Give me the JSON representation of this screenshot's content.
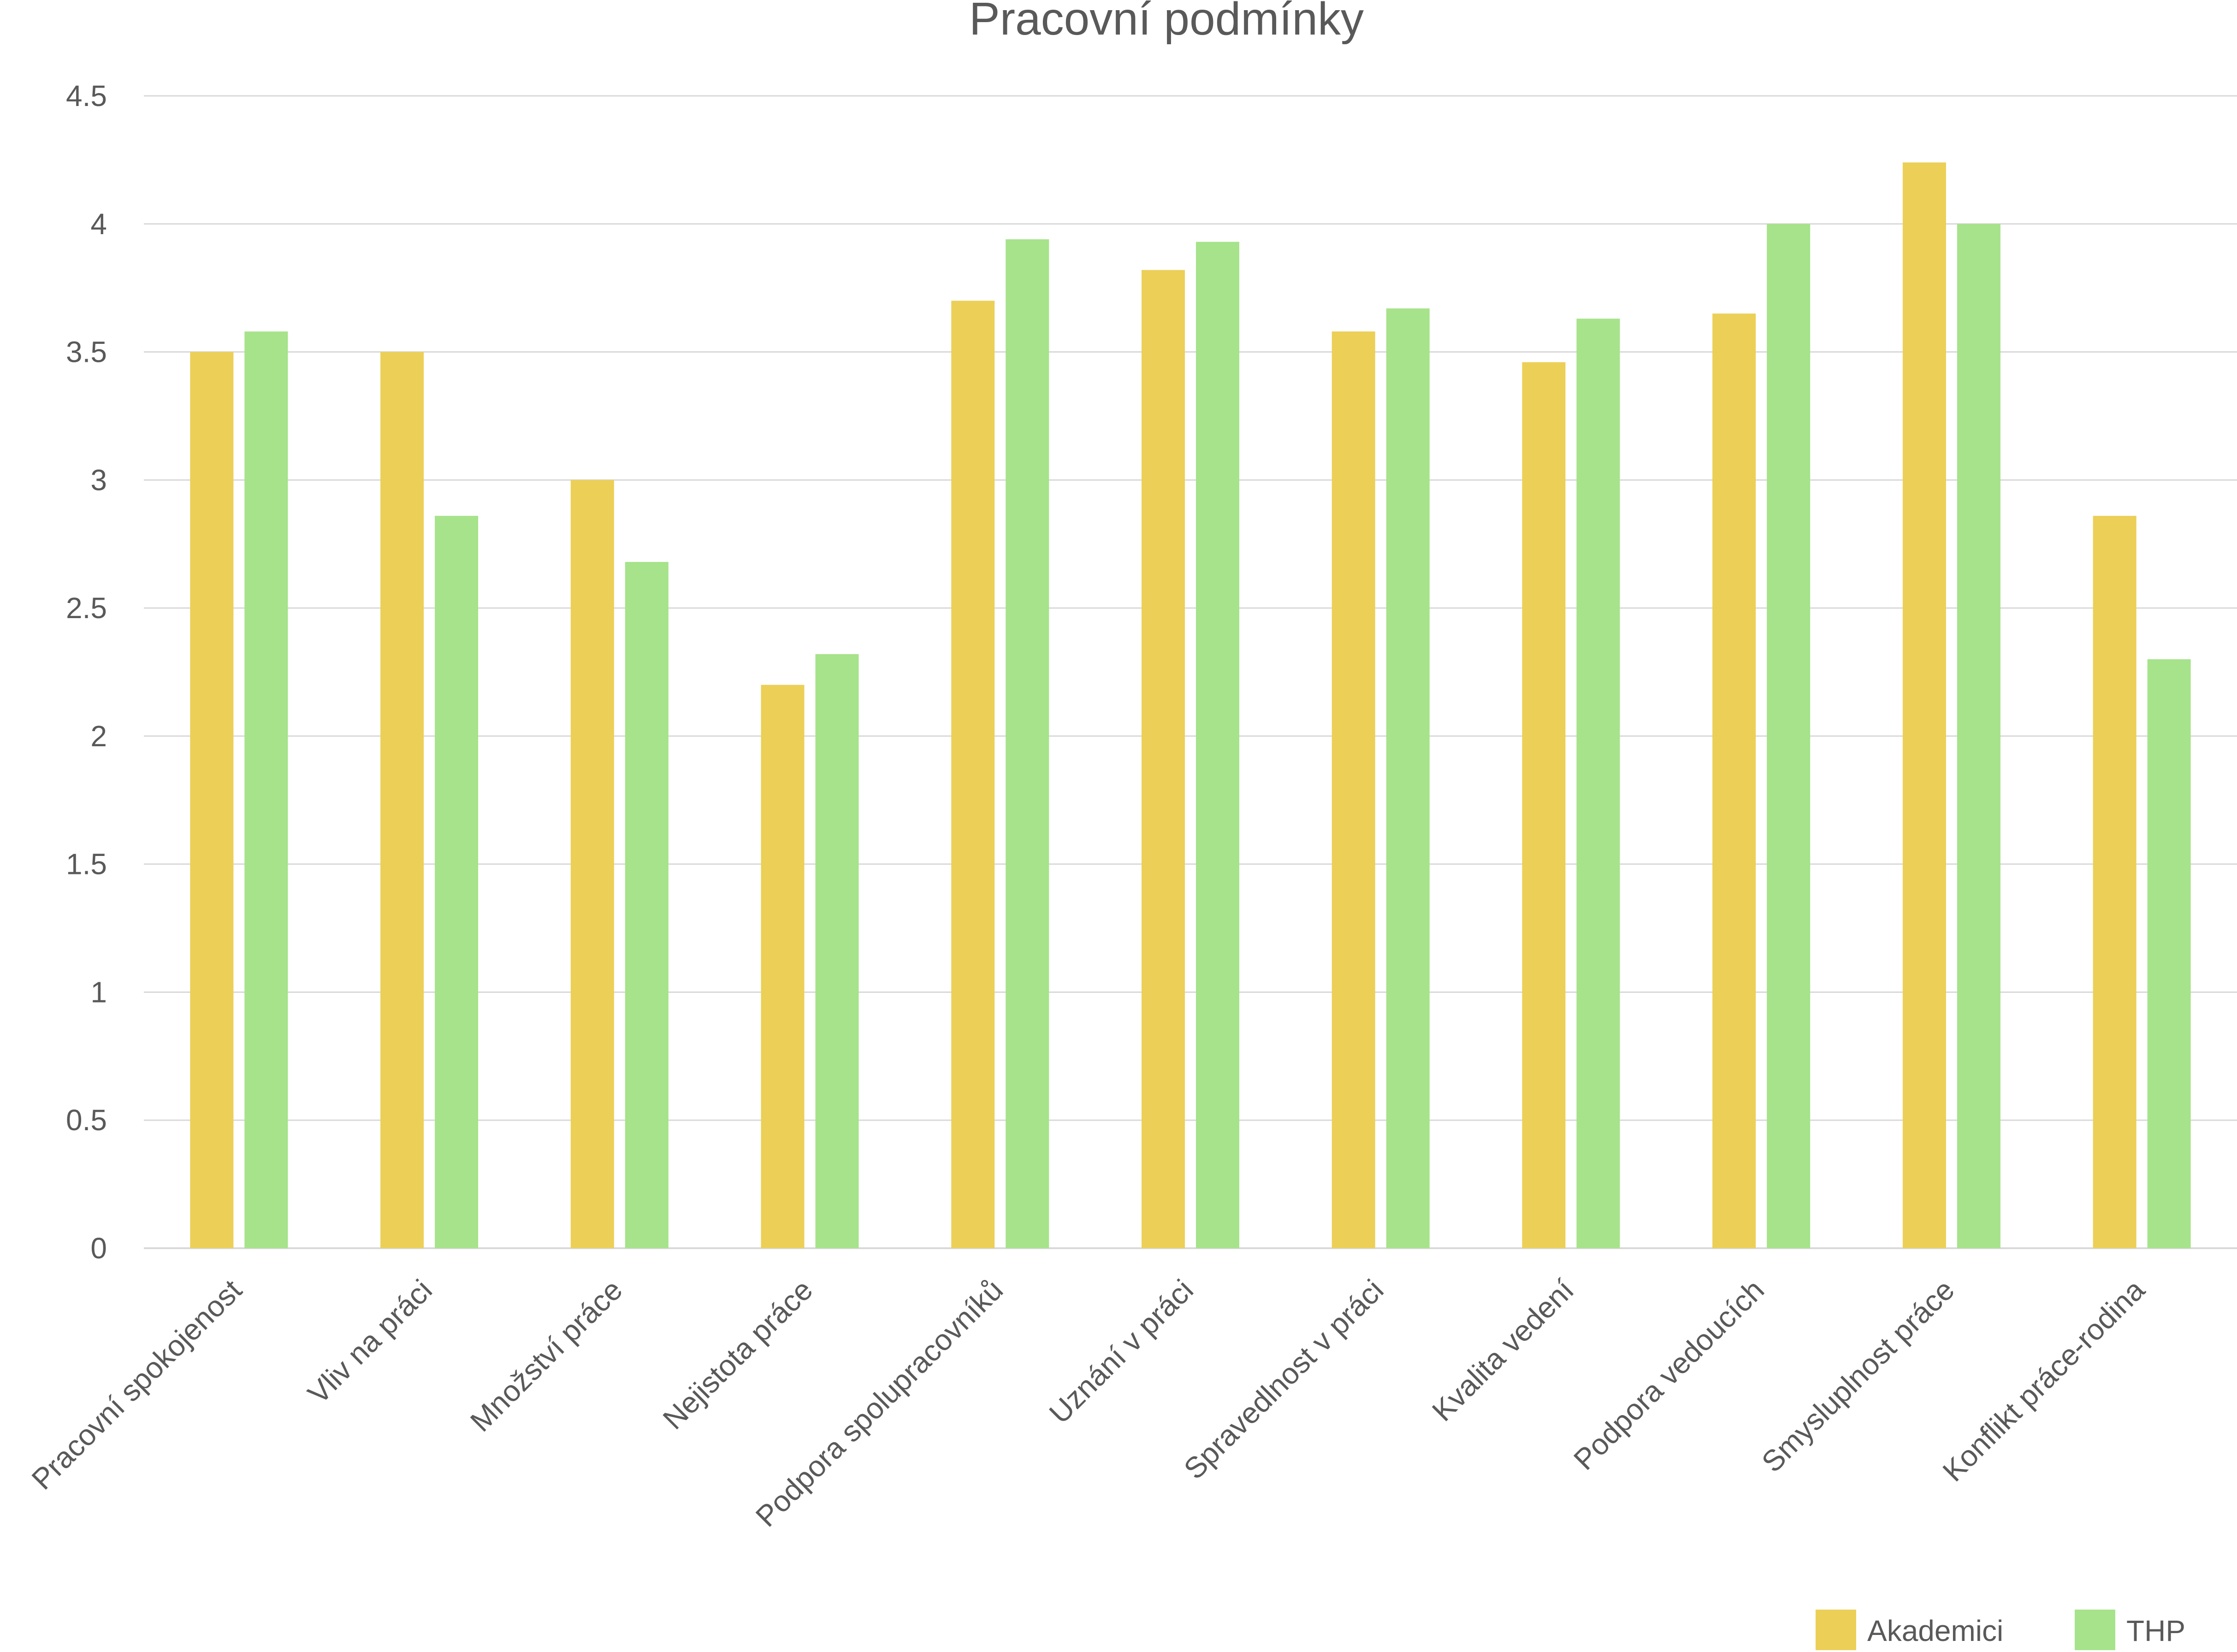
{
  "chart_data": {
    "type": "bar",
    "title": "Pracovní podmínky",
    "xlabel": "",
    "ylabel": "",
    "ylim": [
      0,
      4.5
    ],
    "yticks": [
      "0",
      "0.5",
      "1",
      "1.5",
      "2",
      "2.5",
      "3",
      "3.5",
      "4",
      "4.5"
    ],
    "grid": true,
    "legend_position": "bottom-right",
    "categories": [
      "Pracovní spokojenost",
      "Vliv na práci",
      "Množství práce",
      "Nejistota práce",
      "Podpora spolupracovníků",
      "Uznání v práci",
      "Spravedlnost v práci",
      "Kvalita vedení",
      "Podpora vedoucích",
      "Smysluplnost práce",
      "Konflikt práce-rodina"
    ],
    "series": [
      {
        "name": "Akademici",
        "color": "#eccf57",
        "values": [
          3.5,
          3.5,
          3.0,
          2.2,
          3.7,
          3.82,
          3.58,
          3.46,
          3.65,
          4.24,
          2.86
        ]
      },
      {
        "name": "THP",
        "color": "#a6e38a",
        "values": [
          3.58,
          2.86,
          2.68,
          2.32,
          3.94,
          3.93,
          3.67,
          3.63,
          4.0,
          4.0,
          2.3
        ]
      }
    ]
  }
}
